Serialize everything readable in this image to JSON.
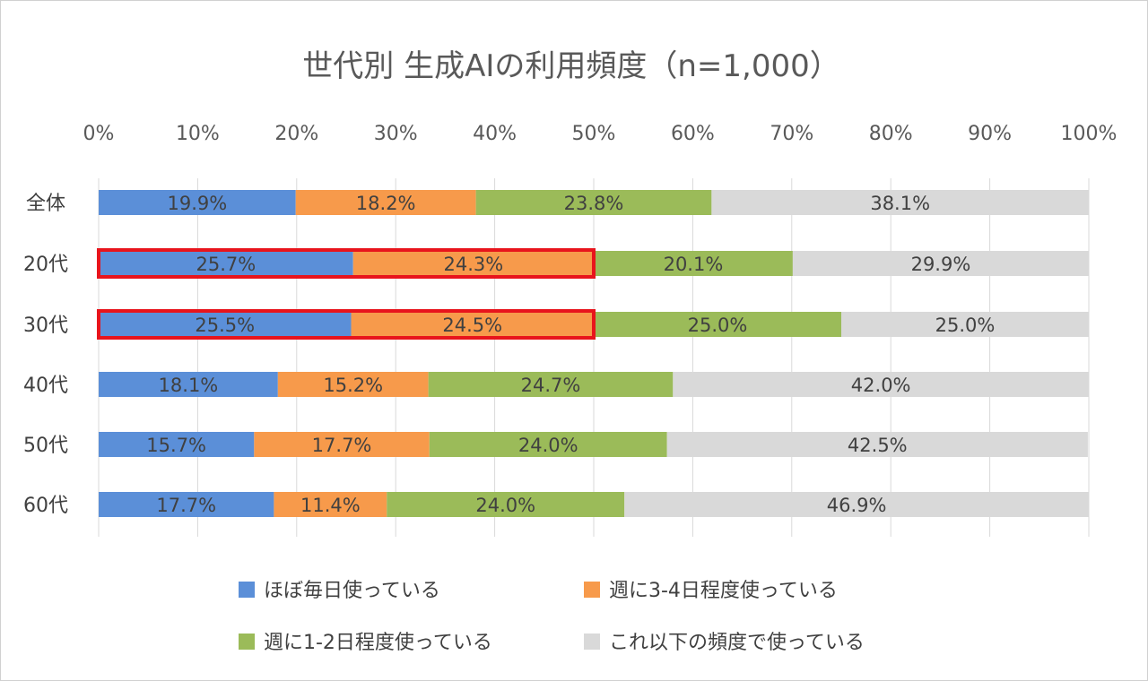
{
  "chart_data": {
    "type": "bar",
    "orientation": "horizontal",
    "stacked": true,
    "title": "世代別 生成AIの利用頻度（n=1,000）",
    "categories": [
      "全体",
      "20代",
      "30代",
      "40代",
      "50代",
      "60代"
    ],
    "x_ticks": [
      "0%",
      "10%",
      "20%",
      "30%",
      "40%",
      "50%",
      "60%",
      "70%",
      "80%",
      "90%",
      "100%"
    ],
    "xlim": [
      0,
      100
    ],
    "grid": true,
    "legend_position": "bottom",
    "series": [
      {
        "name": "ほぼ毎日使っている",
        "color": "#5b8fd8",
        "values": [
          19.9,
          25.7,
          25.5,
          18.1,
          15.7,
          17.7
        ],
        "labels": [
          "19.9%",
          "25.7%",
          "25.5%",
          "18.1%",
          "15.7%",
          "17.7%"
        ]
      },
      {
        "name": "週に3-4日程度使っている",
        "color": "#f79a4b",
        "values": [
          18.2,
          24.3,
          24.5,
          15.2,
          17.7,
          11.4
        ],
        "labels": [
          "18.2%",
          "24.3%",
          "24.5%",
          "15.2%",
          "17.7%",
          "11.4%"
        ]
      },
      {
        "name": "週に1-2日程度使っている",
        "color": "#9bbb59",
        "values": [
          23.8,
          20.1,
          25.0,
          24.7,
          24.0,
          24.0
        ],
        "labels": [
          "23.8%",
          "20.1%",
          "25.0%",
          "24.7%",
          "24.0%",
          "24.0%"
        ]
      },
      {
        "name": "これ以下の頻度で使っている",
        "color": "#d9d9d9",
        "values": [
          38.1,
          29.9,
          25.0,
          42.0,
          42.5,
          46.9
        ],
        "labels": [
          "38.1%",
          "29.9%",
          "25.0%",
          "42.0%",
          "42.5%",
          "46.9%"
        ]
      }
    ],
    "highlights": [
      {
        "category": "20代",
        "from": 0,
        "to": 50.0,
        "color": "#e8141c"
      },
      {
        "category": "30代",
        "from": 0,
        "to": 50.0,
        "color": "#e8141c"
      }
    ]
  }
}
